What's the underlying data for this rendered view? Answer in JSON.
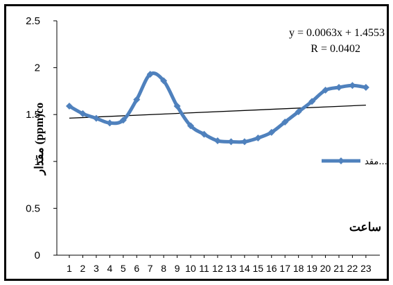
{
  "chart_data": {
    "type": "line",
    "x": [
      1,
      2,
      3,
      4,
      5,
      6,
      7,
      8,
      9,
      10,
      11,
      12,
      13,
      14,
      15,
      16,
      17,
      18,
      19,
      20,
      21,
      22,
      23
    ],
    "series": [
      {
        "name": "مقد...",
        "values": [
          1.59,
          1.51,
          1.46,
          1.41,
          1.44,
          1.66,
          1.93,
          1.86,
          1.59,
          1.38,
          1.29,
          1.22,
          1.21,
          1.21,
          1.25,
          1.31,
          1.42,
          1.53,
          1.64,
          1.76,
          1.79,
          1.81,
          1.79
        ],
        "color": "#4F81BD",
        "marker": "diamond"
      }
    ],
    "trendline": {
      "type": "linear",
      "slope": 0.0063,
      "intercept": 1.4553,
      "equation_text": "y = 0.0063x + 1.4553",
      "r_text": "R = 0.0402",
      "color": "#000000"
    },
    "ylim": [
      0,
      2.5
    ],
    "yticks": [
      "0",
      "0.5",
      "1",
      "1.5",
      "2",
      "2.5"
    ],
    "xticks": [
      "1",
      "2",
      "3",
      "4",
      "5",
      "6",
      "7",
      "8",
      "9",
      "10",
      "11",
      "12",
      "13",
      "14",
      "15",
      "16",
      "17",
      "18",
      "19",
      "20",
      "21",
      "22",
      "23"
    ],
    "ylabel": "مقدار (ppm)co",
    "xlabel": "ساعت",
    "grid": false,
    "legend_position": "right"
  }
}
